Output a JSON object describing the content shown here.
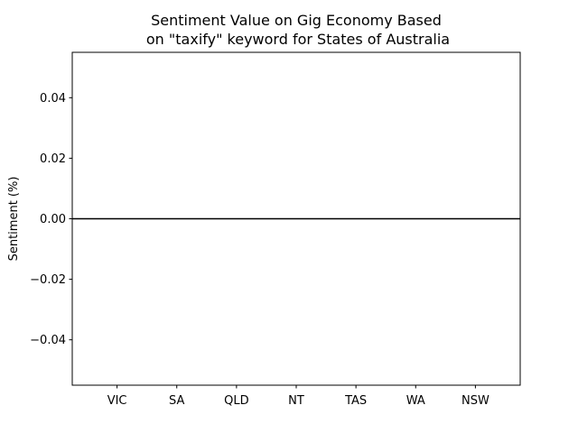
{
  "chart_data": {
    "type": "bar",
    "title_line1": "Sentiment Value on Gig Economy Based",
    "title_line2": "on \"taxify\" keyword for States of Australia",
    "xlabel": "",
    "ylabel": "Sentiment (%)",
    "categories": [
      "VIC",
      "SA",
      "QLD",
      "NT",
      "TAS",
      "WA",
      "NSW"
    ],
    "values": [
      0,
      0,
      0,
      0,
      0,
      0,
      0
    ],
    "ylim": [
      -0.055,
      0.055
    ],
    "yticks": [
      -0.04,
      -0.02,
      0.0,
      0.02,
      0.04
    ],
    "ytick_labels": [
      "−0.04",
      "−0.02",
      "0.00",
      "0.02",
      "0.04"
    ],
    "xlim": [
      -0.75,
      6.75
    ],
    "grid": false,
    "zero_line": true,
    "bar_color": "#1f77b4",
    "line_color": "#000000"
  }
}
